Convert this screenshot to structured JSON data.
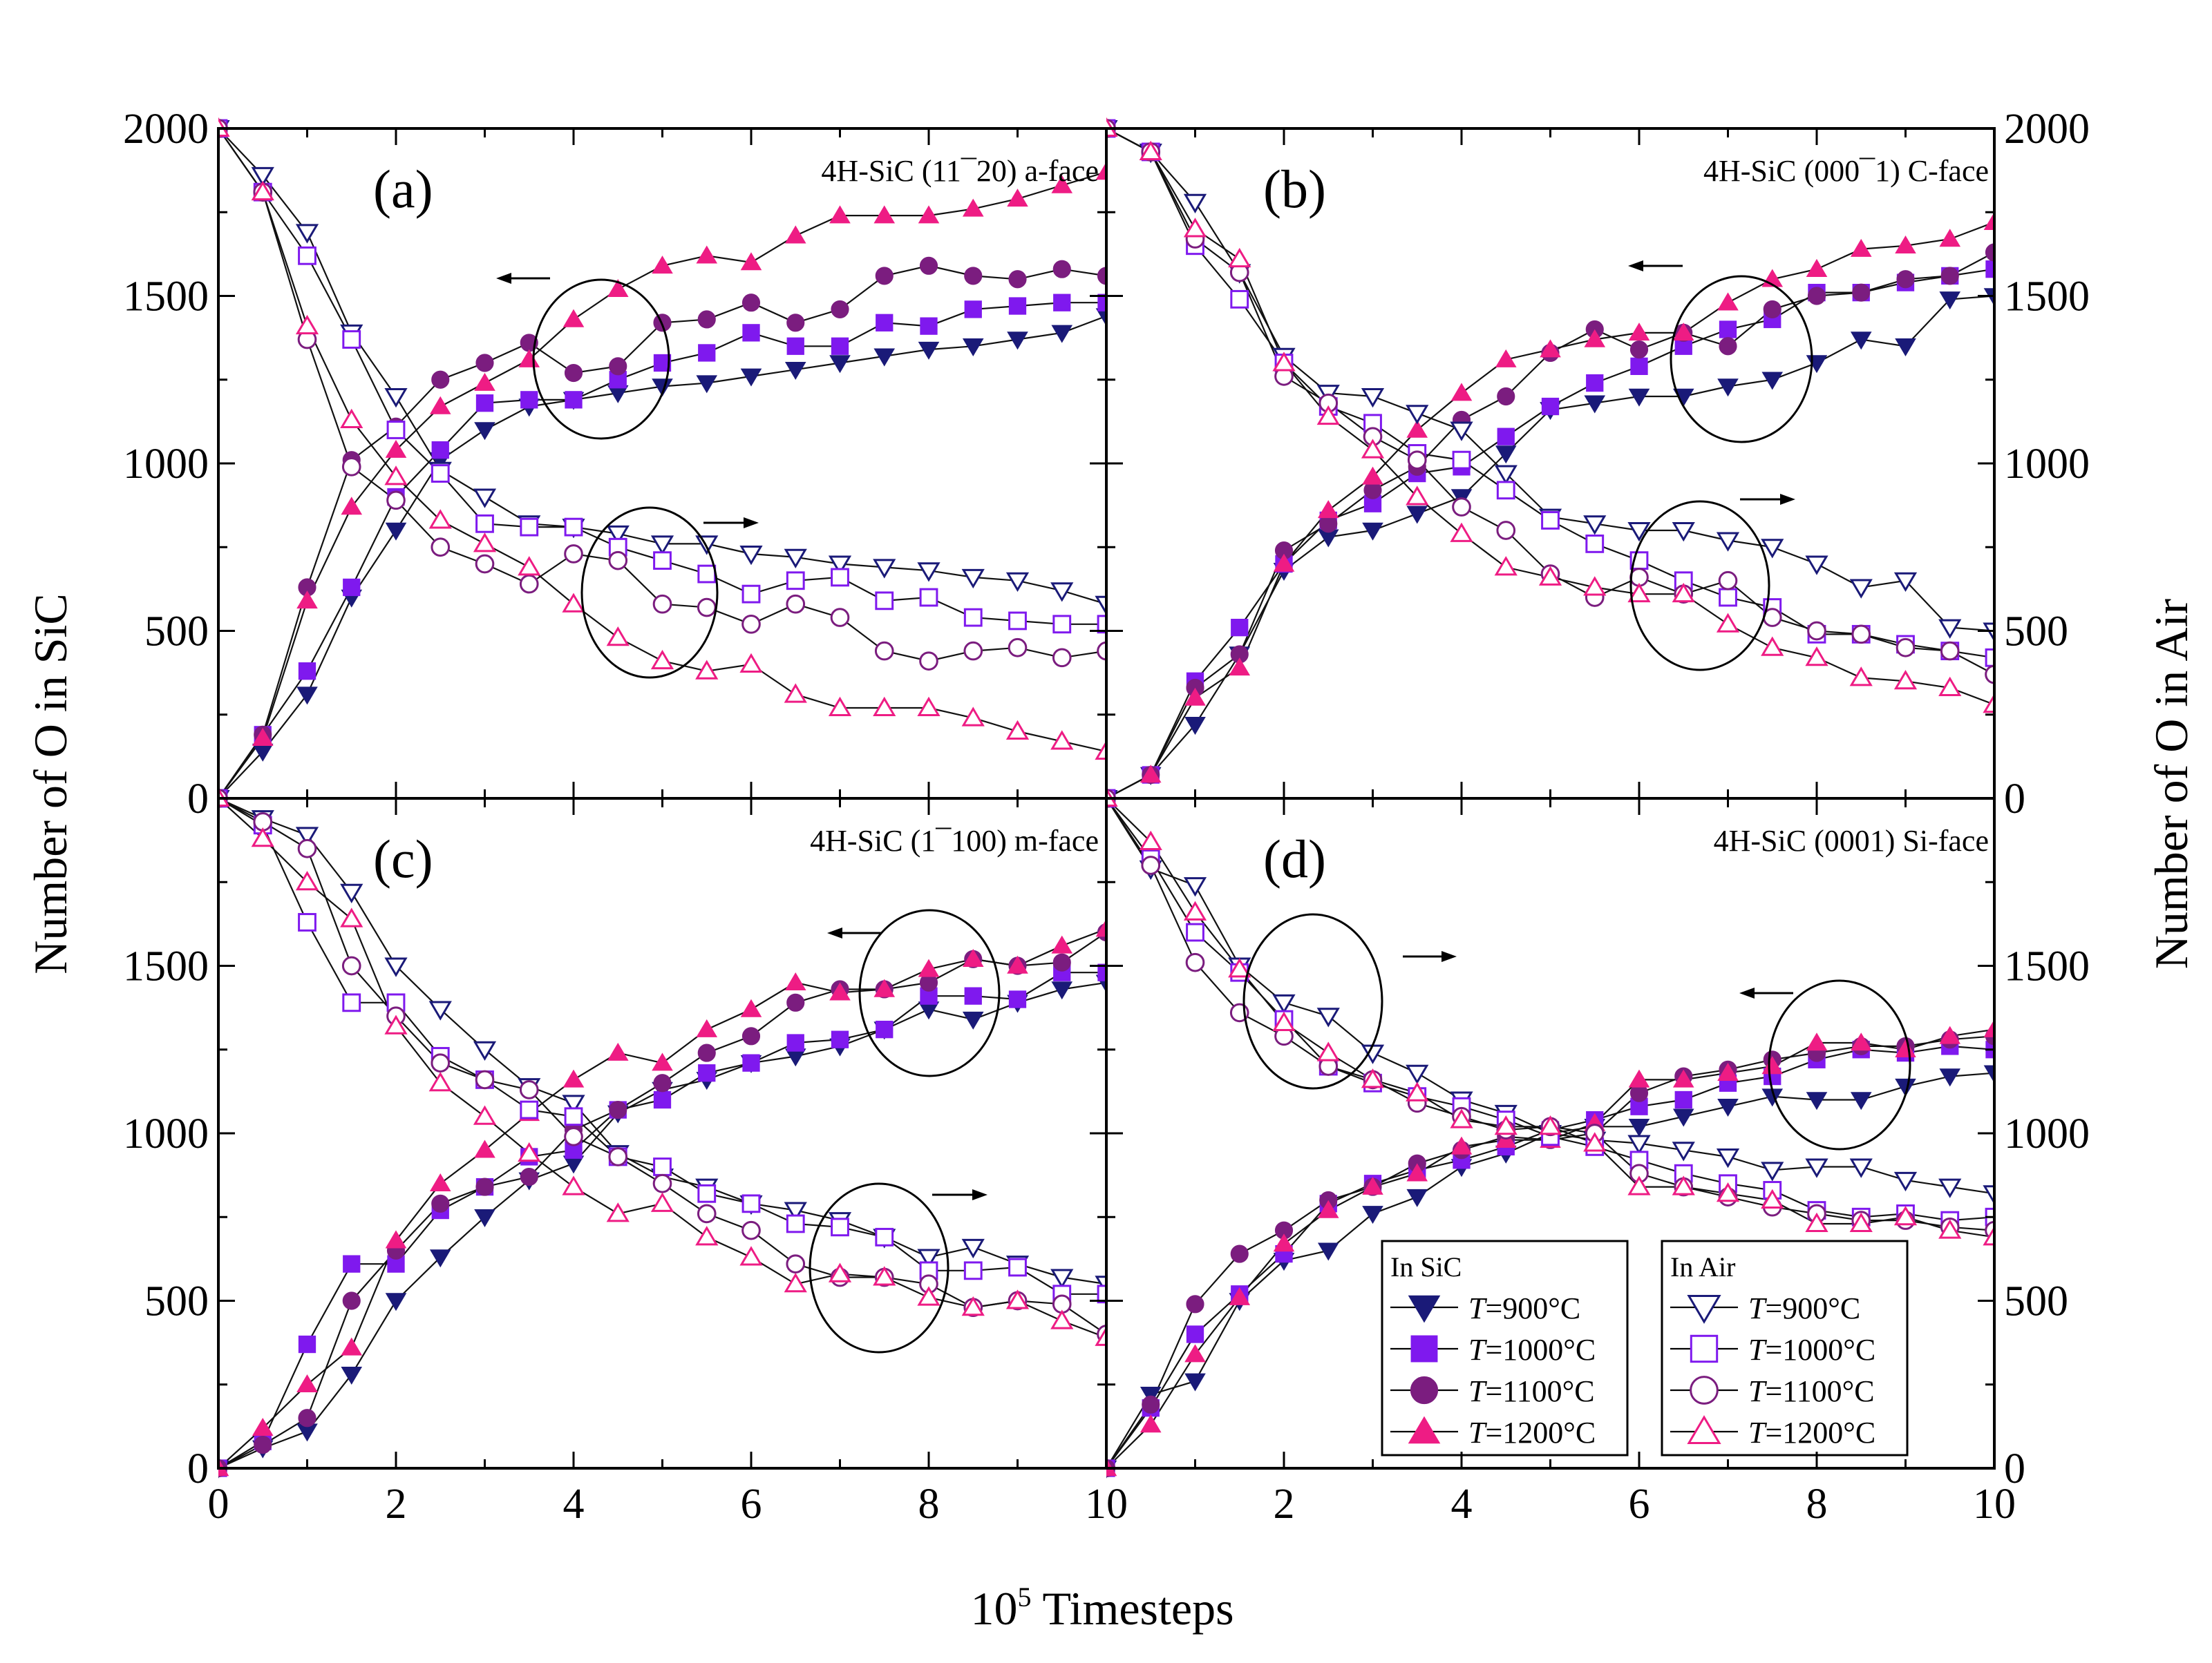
{
  "chart_data": {
    "type": "line",
    "x": [
      0,
      0.5,
      1,
      1.5,
      2,
      2.5,
      3,
      3.5,
      4,
      4.5,
      5,
      5.5,
      6,
      6.5,
      7,
      7.5,
      8,
      8.5,
      9,
      9.5,
      10
    ],
    "xlabel": "10",
    "xlabel_sup": "5",
    "xlabel_rest": "Timesteps",
    "ylabel_left": "Number of O in SiC",
    "ylabel_right": "Number of O in Air",
    "xlim": [
      0,
      10
    ],
    "ylim": [
      0,
      2000
    ],
    "x_ticks": [
      "0",
      "2",
      "4",
      "6",
      "8",
      "10"
    ],
    "y_ticks_top": [
      "0",
      "500",
      "1000",
      "1500",
      "2000"
    ],
    "y_ticks_bottom": [
      "0",
      "500",
      "1000",
      "1500"
    ],
    "series_style": [
      {
        "color": "#1a1a78",
        "marker": "triangle-down"
      },
      {
        "color": "#7f19ee",
        "marker": "square"
      },
      {
        "color": "#7b1d7f",
        "marker": "circle"
      },
      {
        "color": "#ee1c84",
        "marker": "triangle-up"
      }
    ],
    "legend": {
      "sic_header": "In SiC",
      "air_header": "In Air",
      "var": "T",
      "entries": [
        "=900°C",
        "=1000°C",
        "=1100°C",
        "=1200°C"
      ]
    },
    "panels": [
      {
        "letter": "(a)",
        "title": "4H-SiC (11¯20) a-face",
        "sic": [
          [
            0,
            140,
            310,
            600,
            800,
            1010,
            1100,
            1170,
            1190,
            1210,
            1230,
            1240,
            1260,
            1280,
            1300,
            1320,
            1340,
            1350,
            1370,
            1390,
            1440
          ],
          [
            0,
            190,
            380,
            630,
            900,
            1040,
            1180,
            1190,
            1190,
            1250,
            1300,
            1330,
            1390,
            1350,
            1350,
            1420,
            1410,
            1460,
            1470,
            1480,
            1480
          ],
          [
            0,
            190,
            630,
            1010,
            1110,
            1250,
            1300,
            1360,
            1270,
            1290,
            1420,
            1430,
            1480,
            1420,
            1460,
            1560,
            1590,
            1560,
            1550,
            1580,
            1560
          ],
          [
            0,
            180,
            590,
            870,
            1040,
            1170,
            1240,
            1310,
            1430,
            1520,
            1590,
            1620,
            1600,
            1680,
            1740,
            1740,
            1740,
            1760,
            1790,
            1830,
            1870
          ]
        ],
        "air": [
          [
            2000,
            1860,
            1690,
            1390,
            1200,
            980,
            900,
            820,
            810,
            790,
            760,
            760,
            730,
            720,
            700,
            690,
            680,
            660,
            650,
            620,
            580
          ],
          [
            2000,
            1810,
            1620,
            1370,
            1100,
            970,
            820,
            810,
            810,
            750,
            710,
            670,
            610,
            650,
            660,
            590,
            600,
            540,
            530,
            520,
            520
          ],
          [
            2000,
            1810,
            1370,
            990,
            890,
            750,
            700,
            640,
            730,
            710,
            580,
            570,
            520,
            580,
            540,
            440,
            410,
            440,
            450,
            420,
            440
          ],
          [
            2000,
            1810,
            1410,
            1130,
            960,
            830,
            760,
            690,
            580,
            480,
            410,
            380,
            400,
            310,
            270,
            270,
            270,
            240,
            200,
            170,
            140
          ]
        ]
      },
      {
        "letter": "(b)",
        "title": "4H-SiC (000¯1) C-face",
        "sic": [
          [
            0,
            70,
            220,
            430,
            680,
            780,
            800,
            850,
            900,
            1030,
            1160,
            1180,
            1200,
            1200,
            1230,
            1250,
            1300,
            1370,
            1350,
            1490,
            1500
          ],
          [
            0,
            70,
            350,
            510,
            700,
            830,
            880,
            970,
            990,
            1080,
            1170,
            1240,
            1290,
            1350,
            1400,
            1430,
            1510,
            1510,
            1540,
            1560,
            1580
          ],
          [
            0,
            70,
            330,
            430,
            740,
            820,
            920,
            990,
            1130,
            1200,
            1330,
            1400,
            1340,
            1390,
            1350,
            1460,
            1500,
            1510,
            1550,
            1560,
            1630
          ],
          [
            0,
            70,
            300,
            390,
            700,
            860,
            960,
            1100,
            1210,
            1310,
            1340,
            1370,
            1390,
            1390,
            1480,
            1550,
            1580,
            1640,
            1650,
            1670,
            1720
          ]
        ],
        "air": [
          [
            2000,
            1930,
            1780,
            1570,
            1320,
            1210,
            1200,
            1150,
            1100,
            970,
            840,
            820,
            800,
            800,
            770,
            750,
            700,
            630,
            650,
            510,
            500
          ],
          [
            2000,
            1930,
            1650,
            1490,
            1300,
            1170,
            1120,
            1030,
            1010,
            920,
            830,
            760,
            710,
            650,
            600,
            570,
            490,
            490,
            460,
            440,
            420
          ],
          [
            2000,
            1930,
            1670,
            1570,
            1260,
            1180,
            1080,
            1010,
            870,
            800,
            670,
            600,
            660,
            610,
            650,
            540,
            500,
            490,
            450,
            440,
            370
          ],
          [
            2000,
            1930,
            1700,
            1610,
            1300,
            1140,
            1040,
            900,
            790,
            690,
            660,
            630,
            610,
            610,
            520,
            450,
            420,
            360,
            350,
            330,
            280
          ]
        ]
      },
      {
        "letter": "(c)",
        "title": "4H-SiC (1¯100) m-face",
        "sic": [
          [
            0,
            60,
            110,
            280,
            500,
            630,
            750,
            860,
            910,
            1060,
            1130,
            1160,
            1210,
            1230,
            1260,
            1310,
            1370,
            1340,
            1390,
            1430,
            1450
          ],
          [
            0,
            80,
            370,
            610,
            610,
            770,
            840,
            930,
            950,
            1070,
            1100,
            1180,
            1210,
            1270,
            1280,
            1310,
            1410,
            1410,
            1400,
            1480,
            1480
          ],
          [
            0,
            70,
            150,
            500,
            650,
            790,
            840,
            870,
            1010,
            1070,
            1150,
            1240,
            1290,
            1390,
            1430,
            1430,
            1450,
            1520,
            1500,
            1510,
            1600
          ],
          [
            0,
            120,
            250,
            360,
            680,
            850,
            950,
            1060,
            1160,
            1240,
            1210,
            1310,
            1370,
            1450,
            1420,
            1430,
            1490,
            1520,
            1500,
            1560,
            1610
          ]
        ],
        "air": [
          [
            2000,
            1940,
            1890,
            1720,
            1500,
            1370,
            1250,
            1140,
            1090,
            940,
            870,
            840,
            790,
            770,
            740,
            690,
            630,
            660,
            610,
            570,
            550
          ],
          [
            2000,
            1920,
            1630,
            1390,
            1390,
            1230,
            1160,
            1070,
            1050,
            930,
            900,
            820,
            790,
            730,
            720,
            690,
            590,
            590,
            600,
            520,
            520
          ],
          [
            2000,
            1930,
            1850,
            1500,
            1350,
            1210,
            1160,
            1130,
            990,
            930,
            850,
            760,
            710,
            610,
            570,
            570,
            550,
            480,
            500,
            490,
            400
          ],
          [
            2000,
            1880,
            1750,
            1640,
            1320,
            1150,
            1050,
            940,
            840,
            760,
            790,
            690,
            630,
            550,
            580,
            570,
            510,
            480,
            500,
            440,
            390
          ]
        ]
      },
      {
        "letter": "(d)",
        "title": "4H-SiC (0001) Si-face",
        "sic": [
          [
            0,
            220,
            260,
            500,
            620,
            650,
            760,
            810,
            900,
            940,
            1000,
            1020,
            1020,
            1050,
            1080,
            1110,
            1100,
            1100,
            1140,
            1170,
            1180
          ],
          [
            0,
            180,
            400,
            520,
            640,
            790,
            850,
            890,
            920,
            960,
            1010,
            1040,
            1080,
            1100,
            1150,
            1170,
            1220,
            1250,
            1240,
            1260,
            1250
          ],
          [
            0,
            190,
            490,
            640,
            710,
            800,
            840,
            910,
            950,
            990,
            980,
            1000,
            1120,
            1170,
            1190,
            1220,
            1240,
            1260,
            1260,
            1280,
            1290
          ],
          [
            0,
            130,
            340,
            510,
            670,
            770,
            840,
            880,
            960,
            980,
            980,
            1030,
            1160,
            1160,
            1180,
            1200,
            1270,
            1270,
            1250,
            1290,
            1310
          ]
        ],
        "air": [
          [
            2000,
            1790,
            1740,
            1500,
            1390,
            1350,
            1240,
            1180,
            1100,
            1060,
            1000,
            980,
            970,
            950,
            930,
            890,
            900,
            900,
            860,
            840,
            820
          ],
          [
            2000,
            1820,
            1600,
            1480,
            1340,
            1200,
            1150,
            1110,
            1080,
            1040,
            990,
            960,
            920,
            880,
            850,
            830,
            770,
            750,
            760,
            740,
            750
          ],
          [
            2000,
            1800,
            1510,
            1360,
            1290,
            1200,
            1160,
            1090,
            1050,
            1010,
            1020,
            1000,
            880,
            840,
            810,
            780,
            760,
            740,
            740,
            720,
            710
          ],
          [
            2000,
            1870,
            1660,
            1490,
            1330,
            1240,
            1160,
            1120,
            1040,
            1020,
            1020,
            970,
            840,
            840,
            820,
            800,
            730,
            730,
            750,
            710,
            690
          ]
        ]
      }
    ]
  }
}
